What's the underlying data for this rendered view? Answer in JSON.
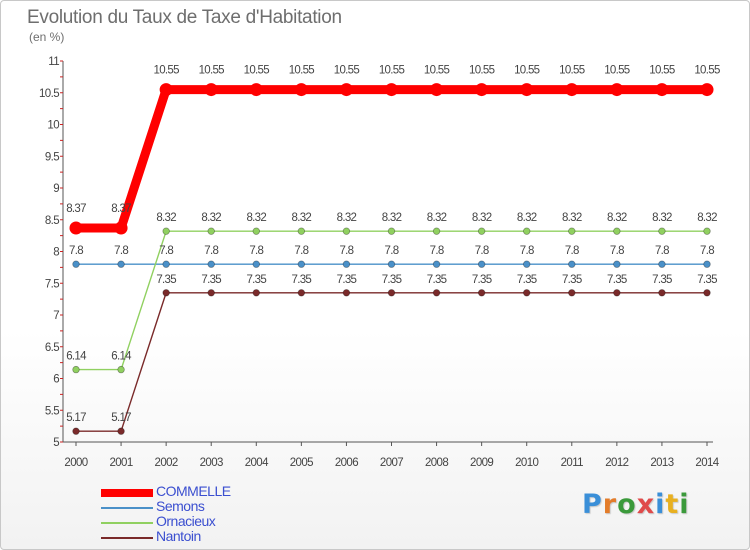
{
  "title": "Evolution du Taux de Taxe d'Habitation",
  "subtitle": "(en %)",
  "brand": {
    "text": "Proxiti",
    "letter_colors": [
      "#3a8fd8",
      "#e37c2a",
      "#3b9a3b",
      "#e04a4a",
      "#3a8fd8",
      "#e8b020",
      "#3b9a3b"
    ]
  },
  "chart_data": {
    "type": "line",
    "title": "Evolution du Taux de Taxe d'Habitation",
    "ylabel": "(en %)",
    "ylim": [
      5,
      11
    ],
    "yticks": [
      "5",
      "5.5",
      "6",
      "6.5",
      "7",
      "7.5",
      "8",
      "8.5",
      "9",
      "9.5",
      "10",
      "10.5",
      "11"
    ],
    "yticks_display": [
      "5",
      "5.5",
      "6",
      "6.5",
      "7",
      "7.5",
      "8",
      "8.5",
      "9",
      "9.5",
      "10",
      "10.5",
      "11"
    ],
    "x": [
      "2000",
      "2001",
      "2002",
      "2003",
      "2004",
      "2005",
      "2006",
      "2007",
      "2008",
      "2009",
      "2010",
      "2011",
      "2012",
      "2013",
      "2014"
    ],
    "series": [
      {
        "name": "COMMELLE",
        "color": "#ff0000",
        "values": [
          8.37,
          8.37,
          10.55,
          10.55,
          10.55,
          10.55,
          10.55,
          10.55,
          10.55,
          10.55,
          10.55,
          10.55,
          10.55,
          10.55,
          10.55
        ],
        "labels": [
          "8.37",
          "8.37",
          "10.55",
          "10.55",
          "10.55",
          "10.55",
          "10.55",
          "10.55",
          "10.55",
          "10.55",
          "10.55",
          "10.55",
          "10.55",
          "10.55",
          "10.55"
        ]
      },
      {
        "name": "Semons",
        "color": "#4a90c8",
        "values": [
          7.8,
          7.8,
          7.8,
          7.8,
          7.8,
          7.8,
          7.8,
          7.8,
          7.8,
          7.8,
          7.8,
          7.8,
          7.8,
          7.8,
          7.8
        ],
        "labels": [
          "7.8",
          "7.8",
          "7.8",
          "7.8",
          "7.8",
          "7.8",
          "7.8",
          "7.8",
          "7.8",
          "7.8",
          "7.8",
          "7.8",
          "7.8",
          "7.8",
          "7.8"
        ]
      },
      {
        "name": "Ornacieux",
        "color": "#90d060",
        "values": [
          6.14,
          6.14,
          8.32,
          8.32,
          8.32,
          8.32,
          8.32,
          8.32,
          8.32,
          8.32,
          8.32,
          8.32,
          8.32,
          8.32,
          8.32
        ],
        "labels": [
          "6.14",
          "6.14",
          "8.32",
          "8.32",
          "8.32",
          "8.32",
          "8.32",
          "8.32",
          "8.32",
          "8.32",
          "8.32",
          "8.32",
          "8.32",
          "8.32",
          "8.32"
        ]
      },
      {
        "name": "Nantoin",
        "color": "#7a2a2a",
        "values": [
          5.17,
          5.17,
          7.35,
          7.35,
          7.35,
          7.35,
          7.35,
          7.35,
          7.35,
          7.35,
          7.35,
          7.35,
          7.35,
          7.35,
          7.35
        ],
        "labels": [
          "5.17",
          "5.17",
          "7.35",
          "7.35",
          "7.35",
          "7.35",
          "7.35",
          "7.35",
          "7.35",
          "7.35",
          "7.35",
          "7.35",
          "7.35",
          "7.35",
          "7.35"
        ]
      }
    ],
    "grid": false,
    "legend_position": "bottom-left"
  }
}
